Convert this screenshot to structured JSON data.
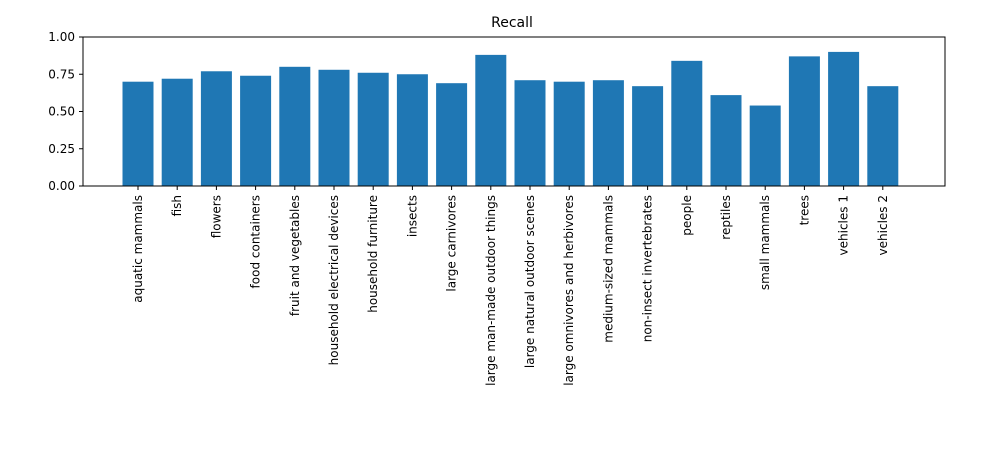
{
  "chart_data": {
    "type": "bar",
    "title": "Recall",
    "xlabel": "",
    "ylabel": "",
    "ylim": [
      0,
      1
    ],
    "yticks": [
      "0.00",
      "0.25",
      "0.50",
      "0.75",
      "1.00"
    ],
    "grid": false,
    "bar_color": "#1f77b4",
    "categories": [
      "aquatic mammals",
      "fish",
      "flowers",
      "food containers",
      "fruit and vegetables",
      "household electrical devices",
      "household furniture",
      "insects",
      "large carnivores",
      "large man-made outdoor things",
      "large natural outdoor scenes",
      "large omnivores and herbivores",
      "medium-sized mammals",
      "non-insect invertebrates",
      "people",
      "reptiles",
      "small mammals",
      "trees",
      "vehicles 1",
      "vehicles 2"
    ],
    "values": [
      0.7,
      0.72,
      0.77,
      0.74,
      0.8,
      0.78,
      0.76,
      0.75,
      0.69,
      0.88,
      0.71,
      0.7,
      0.71,
      0.67,
      0.84,
      0.61,
      0.54,
      0.87,
      0.9,
      0.67
    ]
  }
}
